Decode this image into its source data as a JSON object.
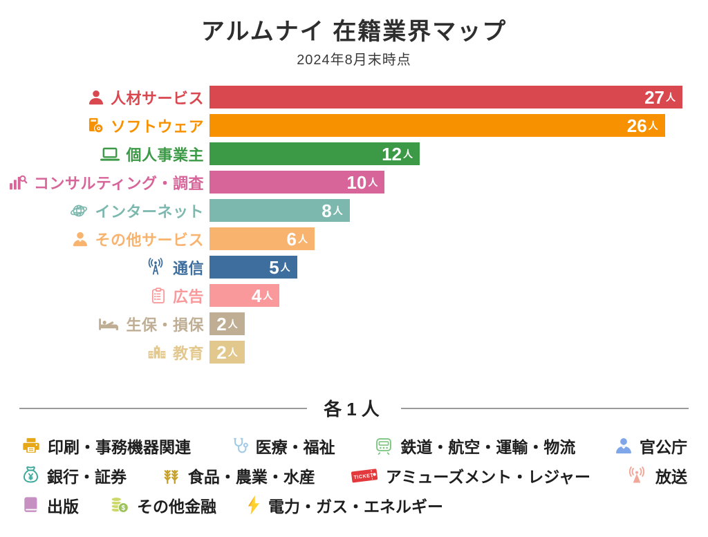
{
  "title": "アルムナイ 在籍業界マップ",
  "subtitle": "2024年8月末時点",
  "chart_data": {
    "type": "bar",
    "orientation": "horizontal",
    "title": "アルムナイ 在籍業界マップ",
    "subtitle": "2024年8月末時点",
    "unit": "人",
    "xlim": [
      0,
      27
    ],
    "grid": false,
    "legend": "none",
    "categories": [
      "人材サービス",
      "ソフトウェア",
      "個人事業主",
      "コンサルティング・調査",
      "インターネット",
      "その他サービス",
      "通信",
      "広告",
      "生保・損保",
      "教育"
    ],
    "values": [
      27,
      26,
      12,
      10,
      8,
      6,
      5,
      4,
      2,
      2
    ],
    "colors": [
      "#d9474f",
      "#f89100",
      "#3c9a47",
      "#d76599",
      "#7cb8ad",
      "#f8b36e",
      "#3e6e9e",
      "#f9999b",
      "#bfae94",
      "#e3c88e"
    ],
    "icons": [
      "person",
      "software-box",
      "laptop",
      "bar-chart-magnifier",
      "globe",
      "person",
      "radio-tower",
      "clipboard",
      "bed",
      "school"
    ]
  },
  "others": {
    "heading": "各1人",
    "items": [
      {
        "label": "印刷・事務機器関連",
        "icon": "printer",
        "color": "#e6a817"
      },
      {
        "label": "医療・福祉",
        "icon": "stethoscope",
        "color": "#a3cbe8"
      },
      {
        "label": "鉄道・航空・運輸・物流",
        "icon": "train",
        "color": "#7cc47f"
      },
      {
        "label": "官公庁",
        "icon": "official-person",
        "color": "#7fa6e9"
      },
      {
        "label": "銀行・証券",
        "icon": "money-bag",
        "color": "#3aa899"
      },
      {
        "label": "食品・農業・水産",
        "icon": "wheat",
        "color": "#c7a02a"
      },
      {
        "label": "アミューズメント・レジャー",
        "icon": "ticket",
        "color": "#e4393c"
      },
      {
        "label": "放送",
        "icon": "broadcast-antenna",
        "color": "#f2a79b"
      },
      {
        "label": "出版",
        "icon": "book",
        "color": "#c690c2"
      },
      {
        "label": "その他金融",
        "icon": "coins",
        "color": "#ccd96a",
        "color2": "#9ec45c"
      },
      {
        "label": "電力・ガス・エネルギー",
        "icon": "lightning",
        "color": "#ffd22e",
        "color2": "#f5a623"
      }
    ]
  }
}
